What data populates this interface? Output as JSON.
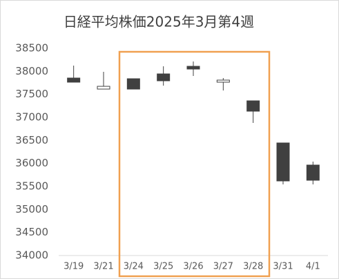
{
  "chart_data": {
    "type": "candlestick",
    "title": "日経平均株価2025年3月第4週",
    "categories": [
      "3/19",
      "3/21",
      "3/24",
      "3/25",
      "3/26",
      "3/27",
      "3/28",
      "3/31",
      "4/1"
    ],
    "open": [
      37855,
      37615,
      37840,
      37945,
      38110,
      37765,
      37360,
      36445,
      35965
    ],
    "high": [
      38125,
      37990,
      37840,
      38110,
      38215,
      37855,
      37360,
      36445,
      36040
    ],
    "low": [
      37765,
      37615,
      37615,
      37690,
      37900,
      37585,
      36880,
      35545,
      35545
    ],
    "close": [
      37765,
      37675,
      37615,
      37795,
      38050,
      37810,
      37135,
      35620,
      35635
    ],
    "up_color": "#ffffff",
    "down_color": "#404040",
    "line_color": "#404040",
    "ylim": [
      34000,
      38500
    ],
    "yticks": [
      34000,
      34500,
      35000,
      35500,
      36000,
      36500,
      37000,
      37500,
      38000,
      38500
    ],
    "grid": false
  }
}
